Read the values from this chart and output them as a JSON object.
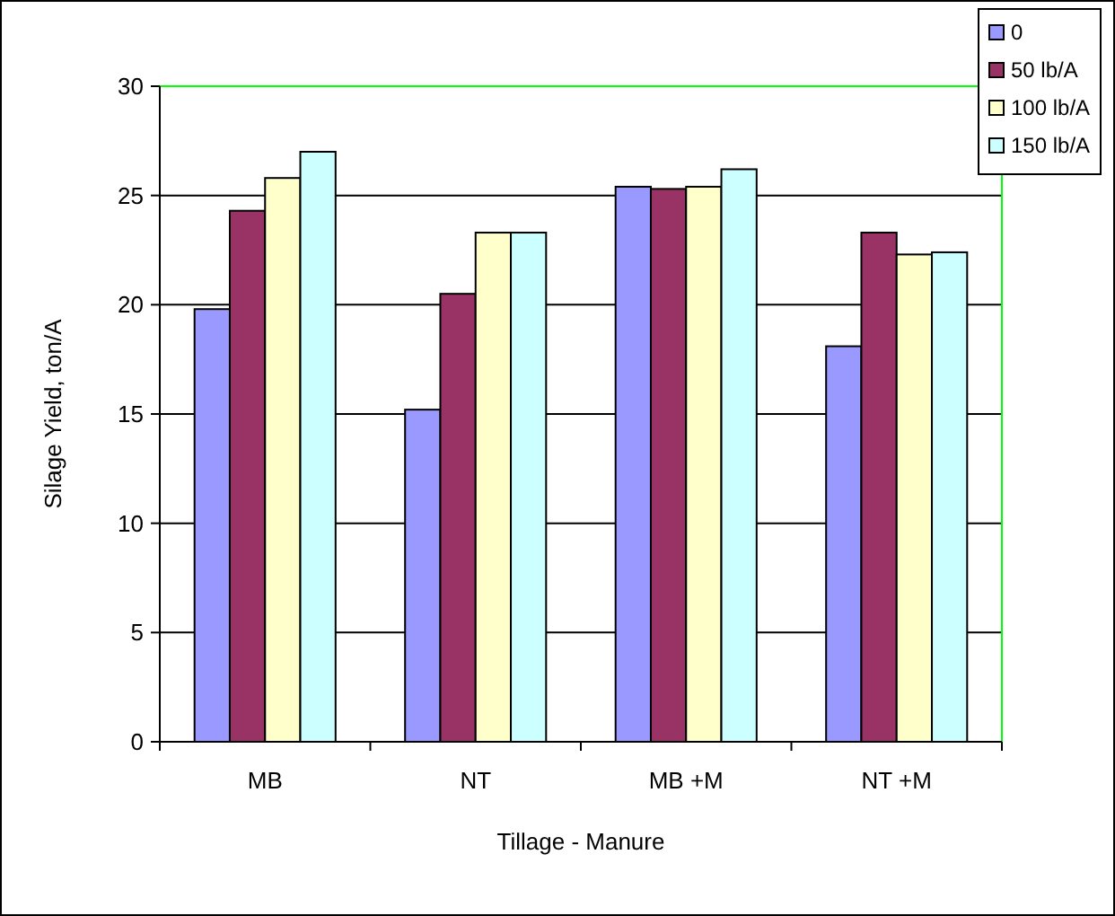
{
  "chart_data": {
    "type": "bar",
    "xlabel": "Tillage - Manure",
    "ylabel": "Silage Yield, ton/A",
    "categories": [
      "MB",
      "NT",
      "MB +M",
      "NT +M"
    ],
    "series": [
      {
        "name": "0",
        "color": "#9999ff",
        "values": [
          19.8,
          15.2,
          25.4,
          18.1
        ]
      },
      {
        "name": "50 lb/A",
        "color": "#993366",
        "values": [
          24.3,
          20.5,
          25.3,
          23.3
        ]
      },
      {
        "name": "100 lb/A",
        "color": "#ffffcc",
        "values": [
          25.8,
          23.3,
          25.4,
          22.3
        ]
      },
      {
        "name": "150 lb/A",
        "color": "#ccffff",
        "values": [
          27.0,
          23.3,
          26.2,
          22.4
        ]
      }
    ],
    "ylim": [
      0,
      30
    ],
    "yticks": [
      0,
      5,
      10,
      15,
      20,
      25,
      30
    ],
    "grid": "y",
    "legend": "top right"
  }
}
